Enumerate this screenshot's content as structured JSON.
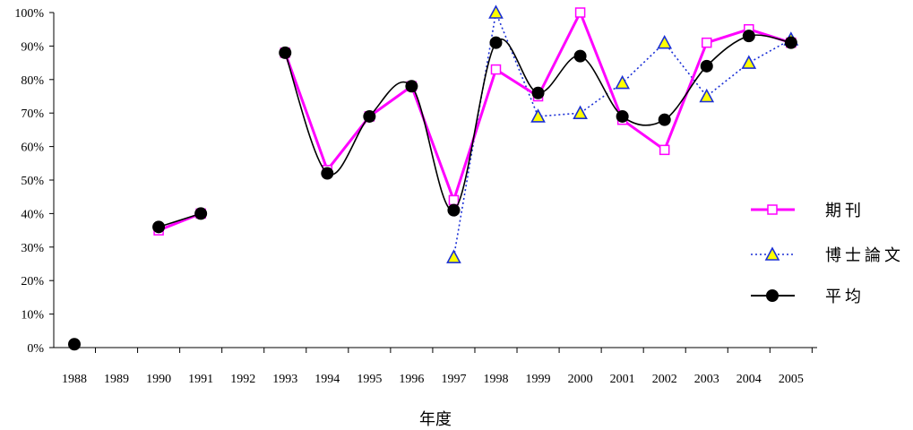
{
  "chart_data": {
    "type": "line",
    "title": "",
    "xlabel": "年度",
    "ylabel": "",
    "categories": [
      "1988",
      "1989",
      "1990",
      "1991",
      "1992",
      "1993",
      "1994",
      "1995",
      "1996",
      "1997",
      "1998",
      "1999",
      "2000",
      "2001",
      "2002",
      "2003",
      "2004",
      "2005"
    ],
    "y_ticks": [
      "0%",
      "10%",
      "20%",
      "30%",
      "40%",
      "50%",
      "60%",
      "70%",
      "80%",
      "90%",
      "100%"
    ],
    "ylim": [
      0,
      100
    ],
    "grid": false,
    "legend_position": "right",
    "series": [
      {
        "name": "期刊",
        "color": "#ff00ff",
        "marker": "open-square",
        "line_style": "solid",
        "values": [
          null,
          null,
          35,
          40,
          null,
          88,
          53,
          69,
          78,
          44,
          83,
          75,
          100,
          68,
          59,
          91,
          95,
          91
        ]
      },
      {
        "name": "博士論文",
        "color": "#1a2fd6",
        "marker": "yellow-triangle",
        "line_style": "dotted",
        "values": [
          null,
          null,
          null,
          null,
          null,
          null,
          null,
          null,
          null,
          27,
          100,
          69,
          70,
          79,
          91,
          75,
          85,
          92
        ]
      },
      {
        "name": "平均",
        "color": "#000000",
        "marker": "filled-circle",
        "line_style": "smooth",
        "values": [
          1,
          null,
          36,
          40,
          null,
          88,
          52,
          69,
          78,
          41,
          91,
          76,
          87,
          69,
          68,
          84,
          93,
          91
        ]
      }
    ]
  }
}
